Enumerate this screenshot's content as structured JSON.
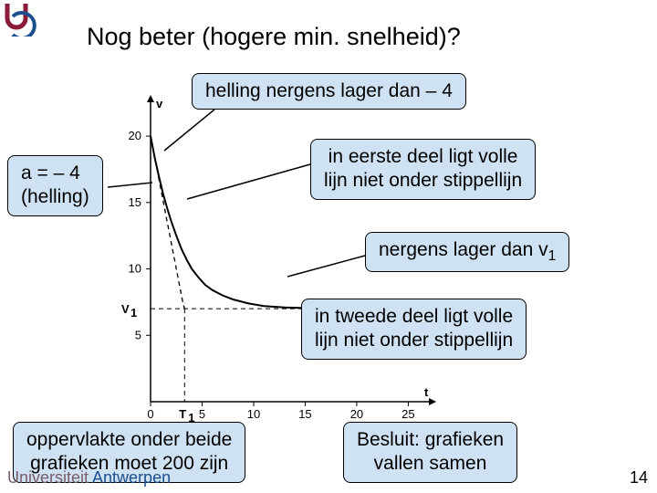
{
  "logo_color_top": "#8a1c3a",
  "logo_color_arc": "#1b4f8e",
  "title": "Nog beter (hogere min. snelheid)?",
  "callouts": {
    "top": "helling nergens lager dan – 4",
    "left": "a = – 4\n(helling)",
    "right1": "in eerste deel ligt volle\nlijn niet onder stippellijn",
    "right2_pre": "nergens lager dan v",
    "right2_sub": "1",
    "mid": "in tweede deel ligt volle\nlijn niet onder stippellijn",
    "botleft": "oppervlakte onder beide\ngrafieken moet 200 zijn",
    "botright": "Besluit: grafieken\nvallen samen"
  },
  "univ_pre": "Universiteit",
  "univ_post": " Antwerpen",
  "page_num": "14",
  "chart": {
    "type": "line",
    "background_color": "#ffffff",
    "axis_color": "#000000",
    "grid": false,
    "xlabel": "t",
    "ylabel": "v",
    "xlim": [
      0,
      27
    ],
    "ylim": [
      0,
      22
    ],
    "x_ticks": [
      0,
      5,
      10,
      15,
      20,
      25
    ],
    "y_ticks": [
      0,
      5,
      10,
      15,
      20
    ],
    "v1_label": "V",
    "v1_label_sub": "1",
    "t1_label": "T",
    "t1_label_sub": "1",
    "v1_value": 7,
    "t1_value": 3.3,
    "dash_pattern": "5,4",
    "dashed_series": {
      "color": "#000000",
      "width": 1.3,
      "points": [
        [
          0,
          20
        ],
        [
          0.35,
          18.6
        ],
        [
          0.7,
          17.2
        ],
        [
          1.05,
          15.8
        ],
        [
          1.4,
          14.4
        ],
        [
          1.75,
          13.0
        ],
        [
          2.1,
          11.6
        ],
        [
          2.45,
          10.2
        ],
        [
          2.8,
          8.8
        ],
        [
          3.15,
          7.4
        ],
        [
          3.3,
          7.0
        ]
      ]
    },
    "solid_series": {
      "color": "#000000",
      "width": 2.0,
      "points": [
        [
          0,
          20
        ],
        [
          0.4,
          18.4
        ],
        [
          0.8,
          17.0
        ],
        [
          1.2,
          15.7
        ],
        [
          1.6,
          14.6
        ],
        [
          2.0,
          13.6
        ],
        [
          2.5,
          12.5
        ],
        [
          3.0,
          11.5
        ],
        [
          3.5,
          10.7
        ],
        [
          4.0,
          10.0
        ],
        [
          4.6,
          9.4
        ],
        [
          5.3,
          8.8
        ],
        [
          6.0,
          8.4
        ],
        [
          7.0,
          8.0
        ],
        [
          8.0,
          7.7
        ],
        [
          9.5,
          7.4
        ],
        [
          11.0,
          7.2
        ],
        [
          13.0,
          7.1
        ],
        [
          16.0,
          7.03
        ],
        [
          20.0,
          7.0
        ],
        [
          25.0,
          7.0
        ],
        [
          27.0,
          7.0
        ]
      ]
    }
  }
}
